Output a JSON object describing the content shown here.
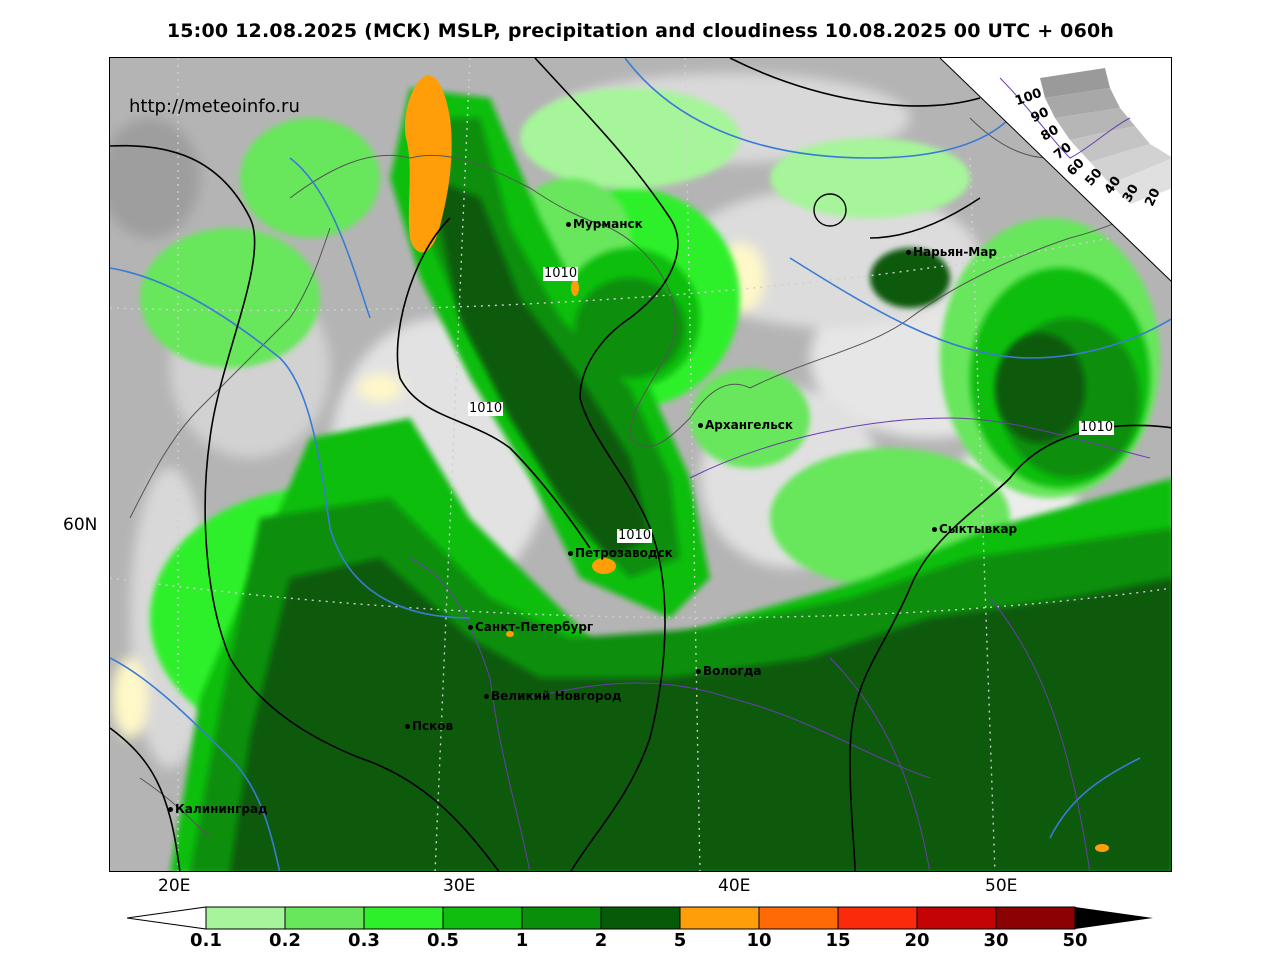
{
  "title": "15:00 12.08.2025 (МСК) MSLP, precipitation and cloudiness 10.08.2025 00 UTC + 060h",
  "website": "http://meteoinfo.ru",
  "longitude_labels": [
    "20E",
    "30E",
    "40E",
    "50E"
  ],
  "latitude_labels": [
    "60N"
  ],
  "cities": [
    "Мурманск",
    "Нарьян-Мар",
    "Архангельск",
    "Сыктывкар",
    "Петрозаводск",
    "Санкт-Петербург",
    "Вологда",
    "Великий Новгород",
    "Псков",
    "Калининград"
  ],
  "isobar_labels": [
    "1010",
    "1010",
    "1010",
    "1010"
  ],
  "cloud_scale_labels": [
    "100",
    "90",
    "80",
    "70",
    "60",
    "50",
    "40",
    "30",
    "20"
  ],
  "legend": {
    "labels": [
      "0.1",
      "0.2",
      "0.3",
      "0.5",
      "1",
      "2",
      "5",
      "10",
      "15",
      "20",
      "30",
      "50"
    ],
    "colors": [
      "#a6f59a",
      "#68e65c",
      "#2ef02a",
      "#10be10",
      "#0a8f0a",
      "#075a07",
      "#ff9e08",
      "#ff6a06",
      "#fa2a0a",
      "#c40404",
      "#8c0202"
    ]
  }
}
